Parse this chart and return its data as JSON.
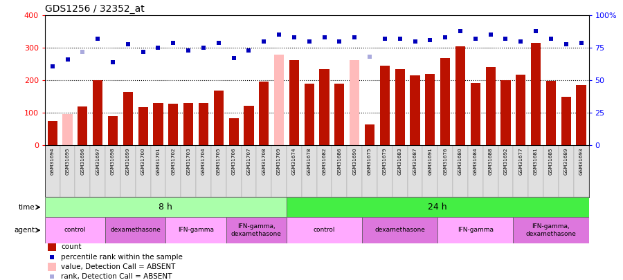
{
  "title": "GDS1256 / 32352_at",
  "samples": [
    "GSM31694",
    "GSM31695",
    "GSM31696",
    "GSM31697",
    "GSM31698",
    "GSM31699",
    "GSM31700",
    "GSM31701",
    "GSM31702",
    "GSM31703",
    "GSM31704",
    "GSM31705",
    "GSM31706",
    "GSM31707",
    "GSM31708",
    "GSM31709",
    "GSM31674",
    "GSM31678",
    "GSM31682",
    "GSM31686",
    "GSM31690",
    "GSM31675",
    "GSM31679",
    "GSM31683",
    "GSM31687",
    "GSM31691",
    "GSM31676",
    "GSM31680",
    "GSM31684",
    "GSM31688",
    "GSM31692",
    "GSM31677",
    "GSM31681",
    "GSM31685",
    "GSM31689",
    "GSM31693"
  ],
  "counts": [
    75,
    95,
    120,
    200,
    90,
    165,
    118,
    130,
    128,
    130,
    130,
    168,
    84,
    122,
    196,
    280,
    262,
    190,
    235,
    189,
    263,
    65,
    245,
    235,
    215,
    220,
    268,
    305,
    192,
    240,
    200,
    218,
    315,
    198,
    150,
    185
  ],
  "absent_value": [
    false,
    true,
    false,
    false,
    false,
    false,
    false,
    false,
    false,
    false,
    false,
    false,
    false,
    false,
    false,
    true,
    false,
    false,
    false,
    false,
    true,
    false,
    false,
    false,
    false,
    false,
    false,
    false,
    false,
    false,
    false,
    false,
    false,
    false,
    false,
    false
  ],
  "percentile": [
    61,
    66,
    72,
    82,
    64,
    78,
    72,
    75,
    79,
    73,
    75,
    79,
    67,
    73,
    80,
    85,
    83,
    80,
    83,
    80,
    83,
    68,
    82,
    82,
    80,
    81,
    83,
    88,
    82,
    85,
    82,
    80,
    88,
    82,
    78,
    79
  ],
  "absent_rank": [
    false,
    false,
    true,
    false,
    false,
    false,
    false,
    false,
    false,
    false,
    false,
    false,
    false,
    false,
    false,
    false,
    false,
    false,
    false,
    false,
    false,
    true,
    false,
    false,
    false,
    false,
    false,
    false,
    false,
    false,
    false,
    false,
    false,
    false,
    false,
    false
  ],
  "bar_color_normal": "#bb1100",
  "bar_color_absent": "#ffbbbb",
  "dot_color_normal": "#0000bb",
  "dot_color_absent": "#aaaadd",
  "time_color_8h": "#aaffaa",
  "time_color_24h": "#44ee44",
  "agent_color_light": "#ffaaff",
  "agent_color_dark": "#dd77dd",
  "time_groups": [
    {
      "label": "8 h",
      "start": 0,
      "end": 16,
      "color": "#aaffaa"
    },
    {
      "label": "24 h",
      "start": 16,
      "end": 36,
      "color": "#44ee44"
    }
  ],
  "agent_groups": [
    {
      "label": "control",
      "start": 0,
      "end": 4,
      "color": "#ffaaff"
    },
    {
      "label": "dexamethasone",
      "start": 4,
      "end": 8,
      "color": "#dd77dd"
    },
    {
      "label": "IFN-gamma",
      "start": 8,
      "end": 12,
      "color": "#ffaaff"
    },
    {
      "label": "IFN-gamma,\ndexamethasone",
      "start": 12,
      "end": 16,
      "color": "#dd77dd"
    },
    {
      "label": "control",
      "start": 16,
      "end": 21,
      "color": "#ffaaff"
    },
    {
      "label": "dexamethasone",
      "start": 21,
      "end": 26,
      "color": "#dd77dd"
    },
    {
      "label": "IFN-gamma",
      "start": 26,
      "end": 31,
      "color": "#ffaaff"
    },
    {
      "label": "IFN-gamma,\ndexamethasone",
      "start": 31,
      "end": 36,
      "color": "#dd77dd"
    }
  ],
  "ylim_left": [
    0,
    400
  ],
  "ylim_right": [
    0,
    100
  ],
  "yticks_left": [
    0,
    100,
    200,
    300,
    400
  ],
  "yticks_right": [
    0,
    25,
    50,
    75,
    100
  ],
  "ytick_labels_right": [
    "0",
    "25",
    "50",
    "75",
    "100%"
  ],
  "grid_lines": [
    100,
    200,
    300
  ]
}
